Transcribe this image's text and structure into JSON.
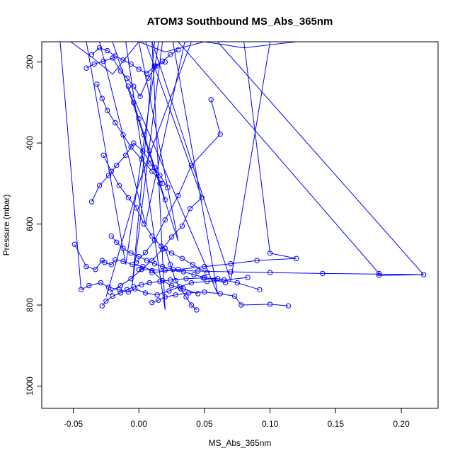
{
  "chart_data": {
    "type": "line",
    "title": "ATOM3 Southbound MS_Abs_365nm",
    "xlabel": "MS_Abs_365nm",
    "ylabel": "Pressure (mbar)",
    "xlim": [
      -0.074,
      0.228
    ],
    "ylim": [
      1055,
      150
    ],
    "y_reversed": true,
    "grid": false,
    "color": "#0000ff",
    "marker": "open-circle",
    "xticks": [
      -0.05,
      0.0,
      0.05,
      0.1,
      0.15,
      0.2
    ],
    "xtick_labels": [
      "-0.05",
      "0.00",
      "0.05",
      "0.10",
      "0.15",
      "0.20"
    ],
    "yticks": [
      200,
      400,
      600,
      800,
      1000
    ],
    "ytick_labels": [
      "200",
      "400",
      "600",
      "800",
      "1000"
    ],
    "series": [
      {
        "x": [
          -0.049,
          -0.04,
          -0.033,
          -0.028,
          -0.026,
          -0.021,
          -0.018,
          -0.012,
          -0.005,
          0.003,
          0.01,
          0.018,
          0.025,
          0.034,
          0.045
        ],
        "y": [
          650,
          705,
          712,
          690,
          695,
          700,
          688,
          692,
          700,
          705,
          715,
          740,
          752,
          760,
          772
        ]
      },
      {
        "x": [
          -0.044,
          -0.038,
          -0.029,
          -0.023,
          -0.015,
          -0.008,
          -0.003,
          0.005,
          0.014,
          0.023,
          0.031,
          0.04,
          0.052,
          0.065,
          0.083
        ],
        "y": [
          762,
          752,
          745,
          756,
          762,
          768,
          760,
          770,
          775,
          765,
          755,
          745,
          742,
          738,
          732
        ]
      },
      {
        "x": [
          -0.028,
          -0.025,
          -0.02,
          -0.014,
          -0.009,
          -0.004,
          0.002,
          0.008,
          0.016,
          0.024,
          0.036,
          0.049,
          0.06,
          0.075,
          0.092
        ],
        "y": [
          802,
          790,
          778,
          770,
          762,
          755,
          750,
          745,
          742,
          738,
          735,
          733,
          735,
          745,
          762
        ]
      },
      {
        "x": [
          0.01,
          0.015,
          0.02,
          0.028,
          0.038,
          0.05,
          0.062,
          0.073,
          0.078,
          0.1,
          0.114
        ],
        "y": [
          794,
          788,
          780,
          775,
          770,
          768,
          772,
          778,
          800,
          798,
          802
        ]
      },
      {
        "x": [
          -0.036,
          -0.03,
          -0.024,
          -0.018,
          -0.012,
          -0.006,
          0.0,
          0.006,
          0.012,
          0.018,
          0.024,
          0.03
        ],
        "y": [
          182,
          165,
          172,
          185,
          195,
          205,
          218,
          228,
          210,
          198,
          182,
          170
        ]
      },
      {
        "x": [
          -0.04,
          -0.034,
          -0.027,
          -0.02,
          -0.014,
          -0.009,
          -0.004,
          0.001,
          0.007,
          0.013,
          0.02
        ],
        "y": [
          215,
          205,
          198,
          190,
          222,
          240,
          260,
          285,
          240,
          210,
          200
        ]
      },
      {
        "x": [
          -0.036,
          -0.03,
          -0.023,
          -0.017,
          -0.01,
          -0.004,
          0.003,
          0.009,
          0.016,
          0.022
        ],
        "y": [
          545,
          505,
          480,
          455,
          430,
          400,
          420,
          450,
          480,
          510
        ]
      },
      {
        "x": [
          -0.027,
          -0.021,
          -0.015,
          -0.008,
          -0.002,
          0.004,
          0.01,
          0.017,
          0.025,
          0.033,
          0.041,
          0.052
        ],
        "y": [
          430,
          470,
          505,
          535,
          560,
          600,
          630,
          655,
          672,
          685,
          700,
          720
        ]
      },
      {
        "x": [
          -0.021,
          -0.017,
          -0.012,
          -0.006,
          0.0,
          0.006,
          0.012,
          0.018,
          0.026,
          0.034,
          0.042,
          0.05,
          0.058,
          0.066
        ],
        "y": [
          630,
          645,
          660,
          672,
          680,
          690,
          698,
          705,
          712,
          718,
          725,
          732,
          738,
          745
        ]
      },
      {
        "x": [
          0.055,
          0.062,
          0.04,
          0.03,
          0.02,
          0.012,
          0.005,
          -0.002
        ],
        "y": [
          293,
          378,
          455,
          530,
          590,
          640,
          670,
          695
        ]
      },
      {
        "x": [
          0.048,
          0.039,
          0.033,
          0.025,
          0.018,
          0.01,
          0.002,
          -0.006,
          -0.014,
          -0.022
        ],
        "y": [
          535,
          562,
          605,
          632,
          662,
          690,
          712,
          735,
          752,
          768
        ]
      },
      {
        "x": [
          0.1,
          0.12,
          0.09,
          0.07,
          0.05,
          0.03,
          0.01
        ],
        "y": [
          672,
          685,
          690,
          698,
          705,
          712,
          720
        ]
      },
      {
        "x": [
          0.183,
          0.183,
          0.217,
          0.14,
          0.1,
          0.07,
          0.045,
          0.02,
          0.0
        ],
        "y": [
          722,
          727,
          725,
          722,
          720,
          718,
          716,
          714,
          712
        ]
      },
      {
        "x": [
          -0.032,
          -0.028,
          -0.024,
          -0.018,
          -0.012,
          -0.006,
          0.002,
          0.01,
          0.018
        ],
        "y": [
          255,
          290,
          320,
          350,
          380,
          410,
          440,
          470,
          500
        ]
      },
      {
        "x": [
          -0.008,
          -0.004,
          0.0,
          0.004,
          0.008,
          0.012,
          0.016,
          0.02
        ],
        "y": [
          260,
          300,
          340,
          380,
          420,
          460,
          500,
          540
        ]
      },
      {
        "x": [
          0.02,
          0.024,
          0.028,
          0.032,
          0.036,
          0.04,
          0.044
        ],
        "y": [
          660,
          700,
          740,
          760,
          780,
          800,
          812
        ]
      }
    ],
    "connector_lines": [
      {
        "x": [
          -0.052,
          -0.035,
          -0.02,
          0.0,
          0.02,
          0.05,
          0.08,
          0.12
        ],
        "y": [
          150,
          190,
          230,
          150,
          175,
          150,
          165,
          150
        ]
      },
      {
        "x": [
          -0.06,
          -0.044
        ],
        "y": [
          150,
          762
        ]
      },
      {
        "x": [
          -0.03,
          0.005,
          0.035
        ],
        "y": [
          150,
          600,
          150
        ]
      },
      {
        "x": [
          -0.01,
          0.02,
          0.01
        ],
        "y": [
          150,
          812,
          150
        ]
      },
      {
        "x": [
          0.01,
          0.07,
          0.1
        ],
        "y": [
          150,
          740,
          150
        ]
      },
      {
        "x": [
          0.03,
          0.183
        ],
        "y": [
          150,
          722
        ]
      },
      {
        "x": [
          0.06,
          0.217
        ],
        "y": [
          150,
          725
        ]
      },
      {
        "x": [
          0.08,
          0.1
        ],
        "y": [
          150,
          672
        ]
      },
      {
        "x": [
          -0.04,
          -0.01,
          0.015
        ],
        "y": [
          150,
          700,
          150
        ]
      },
      {
        "x": [
          0.005,
          0.048
        ],
        "y": [
          150,
          535
        ]
      },
      {
        "x": [
          -0.02,
          0.03,
          0.0
        ],
        "y": [
          150,
          642,
          150
        ]
      },
      {
        "x": [
          0.04,
          0.0,
          -0.025
        ],
        "y": [
          150,
          500,
          780
        ]
      },
      {
        "x": [
          0.018,
          -0.005,
          0.012
        ],
        "y": [
          150,
          750,
          150
        ]
      },
      {
        "x": [
          0.026,
          0.06,
          -0.005
        ],
        "y": [
          150,
          772,
          280
        ]
      }
    ]
  }
}
